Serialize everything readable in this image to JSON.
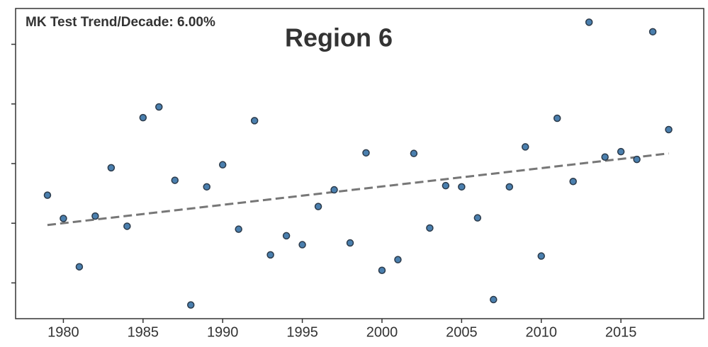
{
  "chart_data": {
    "type": "scatter",
    "title": "Region 6",
    "annotation": "MK Test Trend/Decade: 6.00%",
    "x": [
      1979,
      1980,
      1981,
      1982,
      1983,
      1984,
      1985,
      1986,
      1987,
      1988,
      1989,
      1990,
      1991,
      1992,
      1993,
      1994,
      1995,
      1996,
      1997,
      1998,
      1999,
      2000,
      2001,
      2002,
      2003,
      2004,
      2005,
      2006,
      2007,
      2008,
      2009,
      2010,
      2011,
      2012,
      2013,
      2014,
      2015,
      2016,
      2017,
      2018
    ],
    "values": [
      2.47,
      2.08,
      1.27,
      2.12,
      2.93,
      1.95,
      3.77,
      3.95,
      2.72,
      0.63,
      2.61,
      2.98,
      1.9,
      3.72,
      1.47,
      1.79,
      1.64,
      2.28,
      2.56,
      1.67,
      3.18,
      1.21,
      1.39,
      3.17,
      1.92,
      2.63,
      2.61,
      2.09,
      0.72,
      2.61,
      3.28,
      1.45,
      3.76,
      2.7,
      5.37,
      3.11,
      3.2,
      3.07,
      5.21,
      3.57
    ],
    "color": "#4a7fae",
    "trend": {
      "x": [
        1979,
        2018
      ],
      "values": [
        1.97,
        3.17
      ],
      "color": "#777777"
    },
    "xlim": [
      1977,
      2020.2
    ],
    "xticks": [
      1980,
      1985,
      1990,
      1995,
      2000,
      2005,
      2010,
      2015
    ],
    "ylim": [
      0.4,
      5.6
    ],
    "yticks": [
      1,
      2,
      3,
      4,
      5
    ]
  }
}
